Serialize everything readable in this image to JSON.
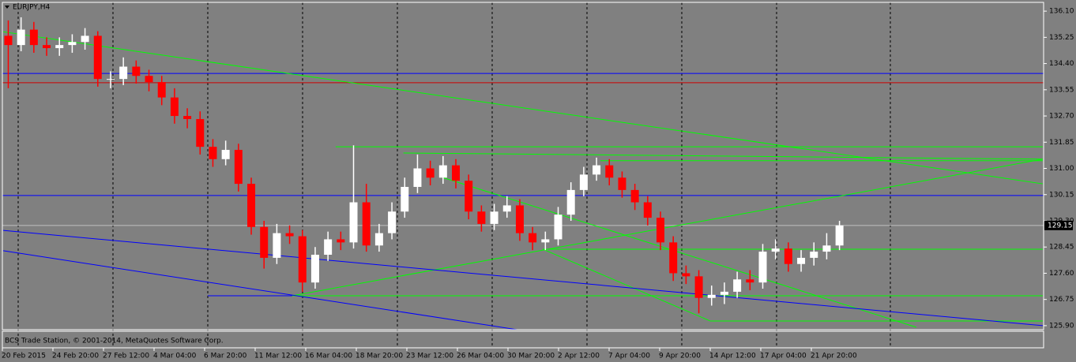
{
  "chart_data": {
    "type": "candlestick",
    "title": "EURJPY,H4",
    "footer": "BCS Trade Station, © 2001-2014, MetaQuotes Software Corp.",
    "x_labels": [
      "20 Feb 2015",
      "24 Feb 20:00",
      "27 Feb 12:00",
      "4 Mar 04:00",
      "6 Mar 20:00",
      "11 Mar 12:00",
      "16 Mar 04:00",
      "18 Mar 20:00",
      "23 Mar 12:00",
      "26 Mar 04:00",
      "30 Mar 20:00",
      "2 Apr 12:00",
      "7 Apr 04:00",
      "9 Apr 20:00",
      "14 Apr 12:00",
      "17 Apr 04:00",
      "21 Apr 20:00"
    ],
    "open": [
      135.3,
      135.0,
      135.5,
      135.0,
      134.9,
      135.0,
      135.1,
      135.3,
      133.9,
      133.9,
      134.3,
      134.0,
      133.8,
      133.3,
      132.7,
      132.6,
      131.7,
      131.3,
      131.6,
      130.5,
      129.1,
      128.1,
      128.9,
      128.8,
      127.3,
      128.2,
      128.7,
      128.6,
      129.9,
      128.5,
      128.9,
      129.6,
      130.4,
      131.0,
      130.7,
      131.1,
      130.6,
      129.6,
      129.2,
      129.6,
      129.8,
      128.9,
      128.6,
      128.7,
      129.5,
      130.3,
      130.8,
      131.1,
      130.7,
      130.3,
      129.9,
      129.4,
      128.6,
      127.6,
      127.5,
      126.8,
      126.9,
      127.0,
      127.4,
      127.3,
      128.3,
      128.4,
      127.9,
      128.1,
      128.3,
      128.5
    ],
    "high": [
      135.8,
      135.9,
      135.75,
      135.25,
      135.25,
      135.35,
      135.55,
      135.45,
      134.15,
      134.6,
      134.5,
      134.2,
      134.0,
      133.6,
      132.95,
      132.85,
      131.95,
      131.9,
      131.8,
      130.7,
      129.3,
      129.2,
      129.15,
      129.0,
      128.45,
      128.95,
      128.95,
      131.75,
      130.5,
      129.2,
      129.9,
      130.7,
      131.45,
      131.25,
      131.4,
      131.3,
      130.8,
      129.8,
      129.85,
      130.1,
      130.0,
      129.1,
      128.95,
      129.75,
      130.55,
      131.05,
      131.35,
      131.3,
      130.9,
      130.5,
      130.1,
      129.6,
      128.8,
      127.85,
      127.7,
      127.2,
      127.3,
      127.65,
      127.7,
      128.55,
      128.7,
      128.6,
      128.35,
      128.6,
      128.9,
      129.3
    ],
    "low": [
      133.6,
      134.8,
      134.75,
      134.65,
      134.65,
      134.75,
      134.85,
      133.65,
      133.6,
      133.7,
      133.75,
      133.5,
      133.05,
      132.45,
      132.3,
      131.45,
      131.05,
      131.1,
      130.25,
      128.85,
      127.75,
      127.9,
      128.55,
      127.0,
      127.1,
      128.0,
      128.35,
      128.4,
      128.3,
      128.3,
      128.7,
      129.4,
      130.2,
      130.45,
      130.5,
      130.35,
      129.35,
      128.95,
      129.0,
      129.4,
      128.65,
      128.35,
      128.35,
      128.5,
      129.3,
      130.1,
      130.6,
      130.45,
      130.05,
      129.65,
      129.15,
      128.35,
      127.35,
      127.25,
      126.3,
      126.55,
      126.6,
      126.8,
      127.05,
      127.1,
      128.05,
      127.65,
      127.65,
      127.85,
      128.05,
      128.35
    ],
    "close": [
      135.0,
      135.5,
      135.0,
      134.9,
      135.0,
      135.1,
      135.3,
      133.9,
      133.9,
      134.3,
      134.0,
      133.8,
      133.3,
      132.7,
      132.6,
      131.7,
      131.3,
      131.6,
      130.5,
      129.1,
      128.1,
      128.9,
      128.8,
      127.3,
      128.2,
      128.7,
      128.6,
      129.9,
      128.5,
      128.9,
      129.6,
      130.4,
      131.0,
      130.7,
      131.1,
      130.6,
      129.6,
      129.2,
      129.6,
      129.8,
      128.9,
      128.6,
      128.7,
      129.5,
      130.3,
      130.8,
      131.1,
      130.7,
      130.3,
      129.9,
      129.4,
      128.6,
      127.6,
      127.5,
      126.8,
      126.9,
      127.0,
      127.4,
      127.3,
      128.3,
      128.4,
      127.9,
      128.1,
      128.3,
      128.5,
      129.15
    ],
    "up_color": "#ffffff",
    "down_color": "#ff0000",
    "xlim": [
      -0.4,
      80.9
    ],
    "ylim": [
      125.77,
      136.41
    ],
    "yticks": [
      {
        "value": 136.1,
        "label": "136.10"
      },
      {
        "value": 135.25,
        "label": "135.25"
      },
      {
        "value": 134.4,
        "label": "134.40"
      },
      {
        "value": 133.55,
        "label": "133.55"
      },
      {
        "value": 132.7,
        "label": "132.70"
      },
      {
        "value": 131.85,
        "label": "131.85"
      },
      {
        "value": 131.0,
        "label": "131.00"
      },
      {
        "value": 130.15,
        "label": "130.15"
      },
      {
        "value": 129.3,
        "label": "129.30"
      },
      {
        "value": 128.45,
        "label": "128.45"
      },
      {
        "value": 127.6,
        "label": "127.60"
      },
      {
        "value": 126.75,
        "label": "126.75"
      },
      {
        "value": 125.9,
        "label": "125.90"
      }
    ],
    "current_price": 129.15,
    "hlines": [
      {
        "value": 134.08,
        "color": "#0000ff"
      },
      {
        "value": 133.78,
        "color": "#cc0000"
      },
      {
        "value": 130.12,
        "color": "#0000ff"
      }
    ],
    "trendlines": [
      {
        "x": [
          -0.4,
          80.9
        ],
        "y": [
          135.43,
          130.5
        ],
        "color": "#00ff00"
      },
      {
        "x": [
          25.6,
          80.9
        ],
        "y": [
          131.7,
          131.7
        ],
        "color": "#00ff00"
      },
      {
        "x": [
          30.9,
          80.9
        ],
        "y": [
          131.5,
          131.3
        ],
        "color": "#00ff00"
      },
      {
        "x": [
          46.3,
          80.9
        ],
        "y": [
          131.25,
          131.25
        ],
        "color": "#00ff00"
      },
      {
        "x": [
          22.2,
          80.9
        ],
        "y": [
          126.87,
          131.3
        ],
        "color": "#00ff00"
      },
      {
        "x": [
          41.8,
          80.9
        ],
        "y": [
          128.38,
          128.38
        ],
        "color": "#00ff00"
      },
      {
        "x": [
          22.2,
          80.9
        ],
        "y": [
          126.87,
          126.87
        ],
        "color": "#00ff00"
      },
      {
        "x": [
          54.9,
          80.9
        ],
        "y": [
          126.05,
          126.05
        ],
        "color": "#00ff00"
      },
      {
        "x": [
          41.8,
          54.9
        ],
        "y": [
          128.38,
          126.05
        ],
        "color": "#00ff00"
      },
      {
        "x": [
          34.0,
          71.0
        ],
        "y": [
          130.7,
          125.85
        ],
        "color": "#00ff00"
      },
      {
        "x": [
          15.6,
          22.2
        ],
        "y": [
          126.87,
          126.87
        ],
        "color": "#0000ff"
      },
      {
        "x": [
          -0.4,
          80.9
        ],
        "y": [
          128.99,
          125.9
        ],
        "color": "#0000ff"
      },
      {
        "x": [
          -0.4,
          39.8
        ],
        "y": [
          128.33,
          125.77
        ],
        "color": "#0000ff"
      }
    ]
  }
}
